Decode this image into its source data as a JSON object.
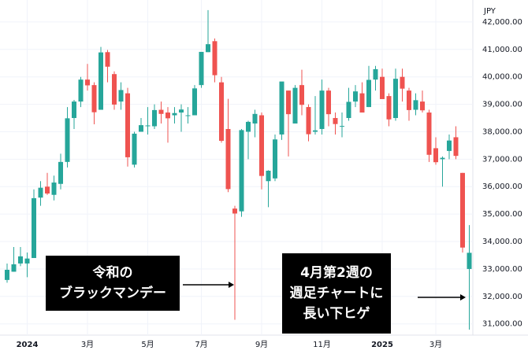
{
  "chart_data": {
    "type": "candlestick",
    "y_axis_label": "JPY",
    "categories": [
      null,
      null,
      null,
      "2024",
      null,
      null,
      null,
      null,
      null,
      null,
      null,
      null,
      "3月",
      null,
      null,
      null,
      null,
      null,
      null,
      null,
      null,
      "5月",
      null,
      null,
      null,
      null,
      null,
      null,
      null,
      "7月",
      null,
      null,
      null,
      null,
      null,
      null,
      null,
      null,
      "9月",
      null,
      null,
      null,
      null,
      null,
      null,
      null,
      null,
      "11月",
      null,
      null,
      null,
      null,
      null,
      null,
      null,
      null,
      "2025",
      null,
      null,
      null,
      null,
      null,
      null,
      null,
      "3月",
      null,
      null,
      null,
      null,
      null
    ],
    "bold_categories": [
      "2024",
      "2025"
    ],
    "open": [
      32600,
      32900,
      33200,
      33200,
      33400,
      35600,
      36000,
      35700,
      36100,
      36900,
      38500,
      39100,
      39900,
      39700,
      38800,
      40900,
      40100,
      39100,
      39400,
      36800,
      38000,
      38200,
      38200,
      38800,
      38700,
      38600,
      38700,
      38600,
      38600,
      39700,
      40900,
      41300,
      39800,
      38100,
      35200,
      35100,
      38000,
      38300,
      38600,
      36200,
      36300,
      37900,
      39500,
      38300,
      39700,
      38900,
      38000,
      38100,
      39500,
      38500,
      38200,
      38500,
      39100,
      39400,
      38900,
      39900,
      40000,
      39300,
      38500,
      40000,
      39500,
      38800,
      39100,
      38700,
      37400,
      37000,
      37300,
      37800,
      36500,
      33000
    ],
    "high": [
      33200,
      33800,
      33800,
      33600,
      35900,
      36200,
      36500,
      36400,
      37200,
      38900,
      39160,
      40000,
      40470,
      39800,
      41090,
      40980,
      40200,
      39800,
      39600,
      38000,
      38500,
      38900,
      39000,
      39100,
      38900,
      38900,
      39000,
      38900,
      39700,
      40900,
      42430,
      41400,
      40000,
      39200,
      35300,
      38100,
      38400,
      38800,
      38700,
      36600,
      37900,
      39800,
      39500,
      39700,
      40260,
      39000,
      39300,
      39900,
      39600,
      38700,
      38700,
      39600,
      39700,
      39800,
      40400,
      40400,
      40300,
      39400,
      40300,
      40300,
      39600,
      39400,
      39500,
      38800,
      37800,
      37100,
      37900,
      38200,
      36500,
      34600
    ],
    "low": [
      32500,
      32900,
      33100,
      32700,
      33400,
      35300,
      35700,
      35500,
      35900,
      36700,
      38100,
      38900,
      39500,
      38270,
      38800,
      39800,
      38800,
      38800,
      36730,
      36700,
      38000,
      37900,
      38100,
      38300,
      37600,
      38300,
      38000,
      38300,
      38600,
      39600,
      40900,
      39800,
      37600,
      35800,
      31150,
      34900,
      37000,
      37800,
      35900,
      35250,
      36200,
      37700,
      37100,
      38300,
      38600,
      37650,
      37900,
      37900,
      38200,
      37900,
      37800,
      38400,
      38900,
      38700,
      38900,
      39500,
      39200,
      38200,
      38400,
      39100,
      38400,
      38600,
      38700,
      36900,
      36800,
      36000,
      37000,
      37000,
      33600,
      30790
    ],
    "close": [
      32970,
      33170,
      33460,
      33380,
      35580,
      35960,
      35750,
      36150,
      36900,
      38490,
      39100,
      39900,
      39690,
      38710,
      40890,
      40370,
      38990,
      39520,
      37070,
      37930,
      38240,
      38230,
      38790,
      38650,
      38490,
      38680,
      38810,
      38600,
      39580,
      40910,
      41190,
      40060,
      37670,
      35910,
      35020,
      38060,
      38360,
      38650,
      36390,
      36580,
      37720,
      39830,
      38640,
      39600,
      38980,
      37910,
      38050,
      39500,
      38640,
      38280,
      38210,
      39090,
      39470,
      38700,
      39890,
      40280,
      39190,
      38450,
      39930,
      39570,
      38790,
      39150,
      38780,
      37160,
      36890,
      37050,
      37680,
      37120,
      33780,
      33590
    ],
    "up_color": "#26a69a",
    "down_color": "#ef5350",
    "ylim": [
      30590,
      42800
    ],
    "yticks": [
      {
        "value": 31000,
        "label": "31,000.00"
      },
      {
        "value": 32000,
        "label": "32,000.00"
      },
      {
        "value": 33000,
        "label": "33,000.00"
      },
      {
        "value": 34000,
        "label": "34,000.00"
      },
      {
        "value": 35000,
        "label": "35,000.00"
      },
      {
        "value": 36000,
        "label": "36,000.00"
      },
      {
        "value": 37000,
        "label": "37,000.00"
      },
      {
        "value": 38000,
        "label": "38,000.00"
      },
      {
        "value": 39000,
        "label": "39,000.00"
      },
      {
        "value": 40000,
        "label": "40,000.00"
      },
      {
        "value": 41000,
        "label": "41,000.00"
      },
      {
        "value": 42000,
        "label": "42,000.00"
      }
    ],
    "grid": true,
    "annotations": [
      {
        "lines": [
          "令和の",
          "ブラックマンデー"
        ]
      },
      {
        "lines": [
          "4月第2週の",
          "週足チャートに",
          "長い下ヒゲ"
        ]
      }
    ]
  }
}
